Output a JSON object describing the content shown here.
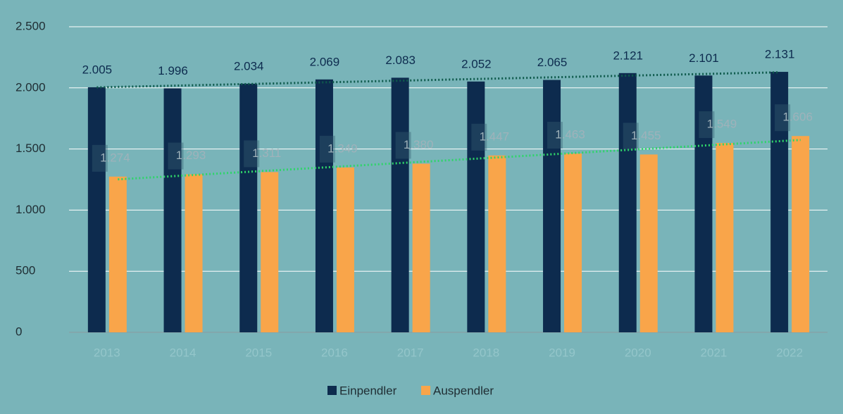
{
  "chart_data": {
    "type": "bar",
    "categories": [
      "2013",
      "2014",
      "2015",
      "2016",
      "2017",
      "2018",
      "2019",
      "2020",
      "2021",
      "2022"
    ],
    "series": [
      {
        "name": "Einpendler",
        "color": "#0d2b4e",
        "values": [
          2005,
          1996,
          2034,
          2069,
          2083,
          2052,
          2065,
          2121,
          2101,
          2131
        ],
        "value_labels": [
          "2.005",
          "1.996",
          "2.034",
          "2.069",
          "2.083",
          "2.052",
          "2.065",
          "2.121",
          "2.101",
          "2.131"
        ],
        "trendline_color": "#0e5a4c"
      },
      {
        "name": "Auspendler",
        "color": "#f9a54a",
        "values": [
          1274,
          1293,
          1311,
          1349,
          1380,
          1447,
          1463,
          1455,
          1549,
          1606
        ],
        "value_labels": [
          "1.274",
          "1.293",
          "1.311",
          "1.349",
          "1.380",
          "1.447",
          "1.463",
          "1.455",
          "1.549",
          "1.606"
        ],
        "trendline_color": "#2fd46a"
      }
    ],
    "ylim": [
      0,
      2500
    ],
    "yticks": [
      0,
      500,
      {
        "value": 1000,
        "label": "1.000"
      },
      {
        "value": 1500,
        "label": "1.500"
      },
      {
        "value": 2000,
        "label": "2.000"
      },
      {
        "value": 2500,
        "label": "2.500"
      }
    ],
    "grid": true,
    "trendline": true,
    "legend": "bottom"
  }
}
